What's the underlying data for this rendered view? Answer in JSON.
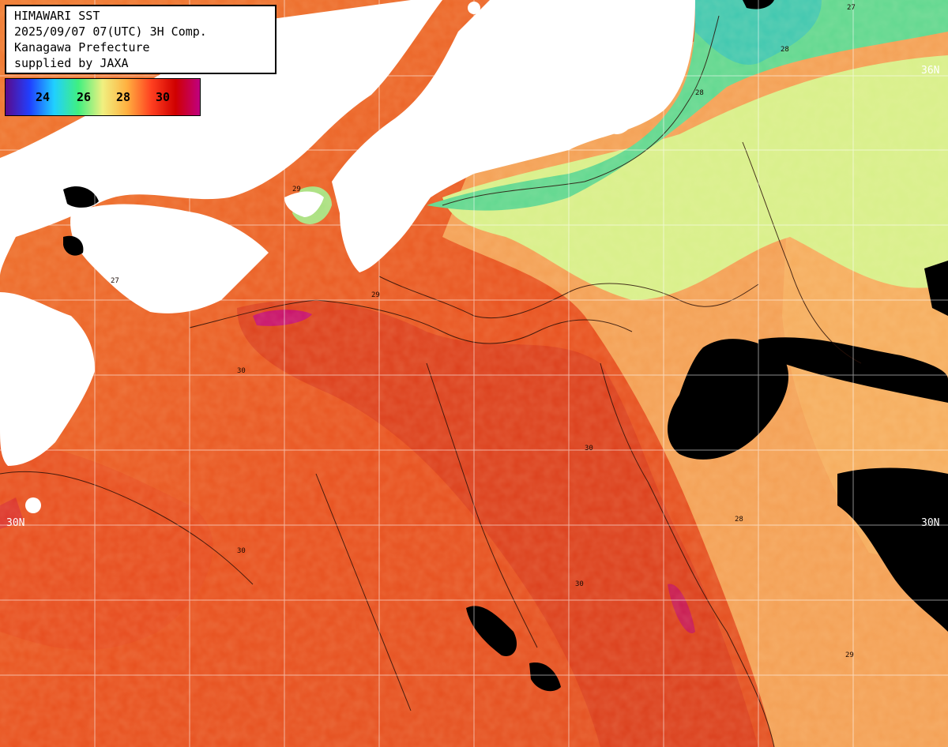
{
  "header": {
    "line1": "HIMAWARI SST",
    "line2": "2025/09/07 07(UTC) 3H Comp.",
    "line3": "Kanagawa Prefecture",
    "line4": "supplied by JAXA"
  },
  "legend": {
    "ticks": [
      "24",
      "26",
      "28",
      "30"
    ],
    "colors": [
      "#5a0a8c",
      "#2040ff",
      "#20d0ff",
      "#40f080",
      "#f0f080",
      "#ffb040",
      "#ff4020",
      "#d00000",
      "#c00080"
    ]
  },
  "latitude_labels": {
    "top_right": "36N",
    "mid_left": "30N",
    "mid_right": "30N"
  },
  "contour_labels": [
    "27",
    "28",
    "29",
    "30"
  ],
  "colors": {
    "land": "#ffffff",
    "cloud": "#000000",
    "grid": "#ffffff",
    "warm": "#ee5a28",
    "hot": "#d83a1c",
    "mild": "#f5a050",
    "cool": "#c8ee7a",
    "cold": "#50d89a"
  }
}
